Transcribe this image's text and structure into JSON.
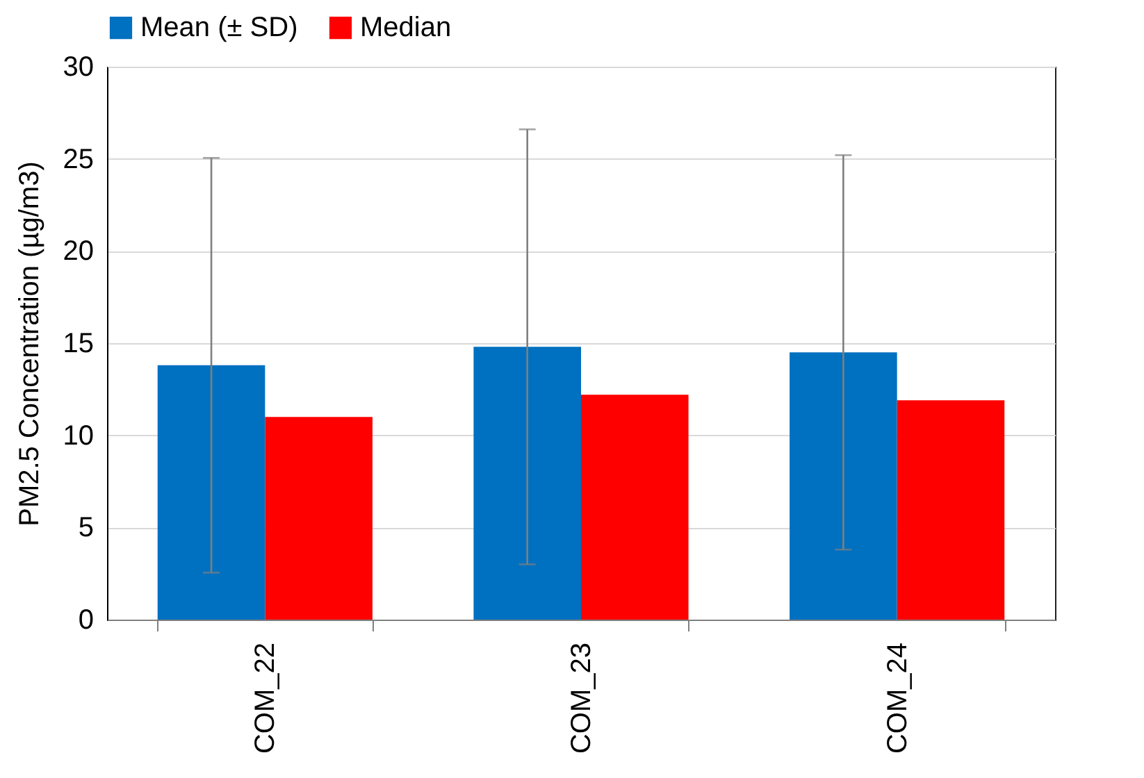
{
  "chart_data": {
    "type": "bar",
    "ylabel": "PM2.5 Concentration (µg/m3)",
    "categories": [
      "COM_22",
      "COM_23",
      "COM_24"
    ],
    "series": [
      {
        "name": "Mean (± SD)",
        "color": "#0070c0",
        "values": [
          13.8,
          14.8,
          14.5
        ],
        "errors": [
          11.25,
          11.8,
          10.7
        ]
      },
      {
        "name": "Median",
        "color": "#ff0000",
        "values": [
          11.0,
          12.2,
          11.9
        ]
      }
    ],
    "ylim": [
      0,
      30
    ],
    "yticks": [
      0,
      5,
      10,
      15,
      20,
      25,
      30
    ],
    "grid": "y",
    "legend": "top"
  }
}
